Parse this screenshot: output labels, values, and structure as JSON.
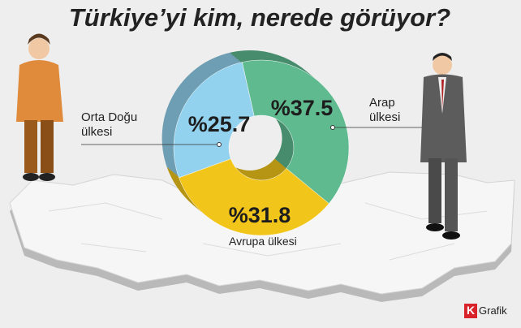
{
  "chart_data": {
    "type": "donut",
    "title": "Türkiye’yi kim, nerede görüyor?",
    "categories": [
      "Orta Doğu ülkesi",
      "Arap ülkesi",
      "Avrupa ülkesi"
    ],
    "values": [
      25.7,
      37.5,
      31.8
    ],
    "value_labels": [
      "%25.7",
      "%37.5",
      "%31.8"
    ],
    "colors": [
      "#93d2ef",
      "#5fba90",
      "#f2c51b"
    ],
    "credit": {
      "mark": "K",
      "text": "Grafik"
    }
  }
}
